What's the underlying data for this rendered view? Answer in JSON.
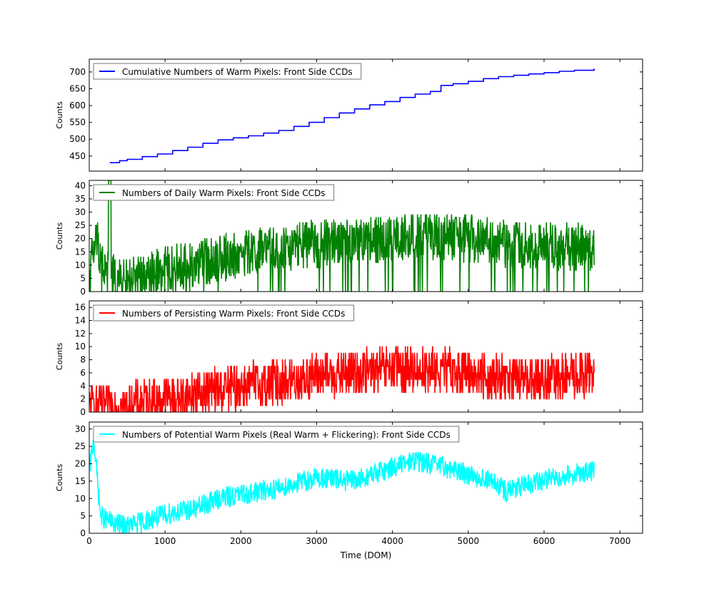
{
  "chart_data": [
    {
      "type": "line",
      "series": [
        {
          "name": "Cumulative Numbers of Warm Pixels: Front Side CCDs",
          "color": "#0000ff",
          "points": [
            [
              270,
              430
            ],
            [
              400,
              436
            ],
            [
              500,
              440
            ],
            [
              700,
              448
            ],
            [
              900,
              456
            ],
            [
              1100,
              466
            ],
            [
              1300,
              476
            ],
            [
              1500,
              488
            ],
            [
              1700,
              498
            ],
            [
              1900,
              504
            ],
            [
              2100,
              510
            ],
            [
              2300,
              518
            ],
            [
              2500,
              526
            ],
            [
              2700,
              538
            ],
            [
              2900,
              550
            ],
            [
              3100,
              564
            ],
            [
              3300,
              578
            ],
            [
              3500,
              590
            ],
            [
              3700,
              602
            ],
            [
              3900,
              612
            ],
            [
              4100,
              624
            ],
            [
              4300,
              634
            ],
            [
              4500,
              642
            ],
            [
              4640,
              660
            ],
            [
              4800,
              665
            ],
            [
              5000,
              672
            ],
            [
              5200,
              680
            ],
            [
              5400,
              686
            ],
            [
              5600,
              690
            ],
            [
              5800,
              694
            ],
            [
              6000,
              698
            ],
            [
              6200,
              702
            ],
            [
              6400,
              705
            ],
            [
              6660,
              710
            ]
          ]
        }
      ],
      "ylabel": "Counts",
      "xlim": [
        0,
        7300
      ],
      "ylim": [
        405,
        738
      ],
      "yticks": [
        450,
        500,
        550,
        600,
        650,
        700
      ],
      "legend": "top-left"
    },
    {
      "type": "line",
      "series": [
        {
          "name": "Numbers of Daily Warm Pixels: Front Side CCDs",
          "color": "#008000",
          "trend": [
            [
              0,
              8
            ],
            [
              100,
              20
            ],
            [
              200,
              8
            ],
            [
              400,
              3
            ],
            [
              700,
              5
            ],
            [
              1000,
              8
            ],
            [
              1300,
              10
            ],
            [
              1600,
              12
            ],
            [
              2000,
              14
            ],
            [
              2500,
              16
            ],
            [
              3000,
              18
            ],
            [
              3500,
              19
            ],
            [
              4000,
              20
            ],
            [
              4500,
              21
            ],
            [
              5000,
              20
            ],
            [
              5500,
              18
            ],
            [
              6000,
              17
            ],
            [
              6660,
              17
            ]
          ],
          "noise": 9
        }
      ],
      "ylabel": "Counts",
      "xlim": [
        0,
        7300
      ],
      "ylim": [
        0,
        42
      ],
      "yticks": [
        0,
        5,
        10,
        15,
        20,
        25,
        30,
        35,
        40
      ],
      "legend": "top-left"
    },
    {
      "type": "line",
      "series": [
        {
          "name": "Numbers of Persisting Warm Pixels: Front Side CCDs",
          "color": "#ff0000",
          "trend": [
            [
              0,
              1
            ],
            [
              500,
              1
            ],
            [
              1000,
              2
            ],
            [
              1500,
              3
            ],
            [
              2000,
              4
            ],
            [
              2500,
              4.5
            ],
            [
              3000,
              5.5
            ],
            [
              3500,
              6
            ],
            [
              4000,
              6.5
            ],
            [
              4500,
              6.5
            ],
            [
              5000,
              6
            ],
            [
              5500,
              5
            ],
            [
              6000,
              5
            ],
            [
              6660,
              6
            ]
          ],
          "noise": 3.5
        }
      ],
      "ylabel": "Counts",
      "xlim": [
        0,
        7300
      ],
      "ylim": [
        0,
        17
      ],
      "yticks": [
        0,
        2,
        4,
        6,
        8,
        10,
        12,
        14,
        16
      ],
      "legend": "top-left"
    },
    {
      "type": "line",
      "series": [
        {
          "name": "Numbers of Potential Warm Pixels (Real Warm + Flickering): Front Side CCDs",
          "color": "#00ffff",
          "trend": [
            [
              0,
              18
            ],
            [
              60,
              27
            ],
            [
              150,
              5
            ],
            [
              300,
              3
            ],
            [
              500,
              2
            ],
            [
              800,
              4
            ],
            [
              1100,
              6
            ],
            [
              1400,
              7
            ],
            [
              1700,
              10
            ],
            [
              2000,
              11
            ],
            [
              2500,
              13
            ],
            [
              3000,
              16
            ],
            [
              3500,
              15
            ],
            [
              4000,
              19
            ],
            [
              4300,
              21
            ],
            [
              4700,
              19
            ],
            [
              5000,
              17
            ],
            [
              5300,
              15
            ],
            [
              5500,
              12
            ],
            [
              5800,
              14
            ],
            [
              6100,
              16
            ],
            [
              6400,
              17
            ],
            [
              6660,
              18
            ]
          ],
          "noise": 3
        }
      ],
      "xlabel": "Time (DOM)",
      "ylabel": "Counts",
      "xlim": [
        0,
        7300
      ],
      "ylim": [
        0,
        32
      ],
      "yticks": [
        0,
        5,
        10,
        15,
        20,
        25,
        30
      ],
      "xticks": [
        0,
        1000,
        2000,
        3000,
        4000,
        5000,
        6000,
        7000
      ],
      "legend": "top-left"
    }
  ]
}
